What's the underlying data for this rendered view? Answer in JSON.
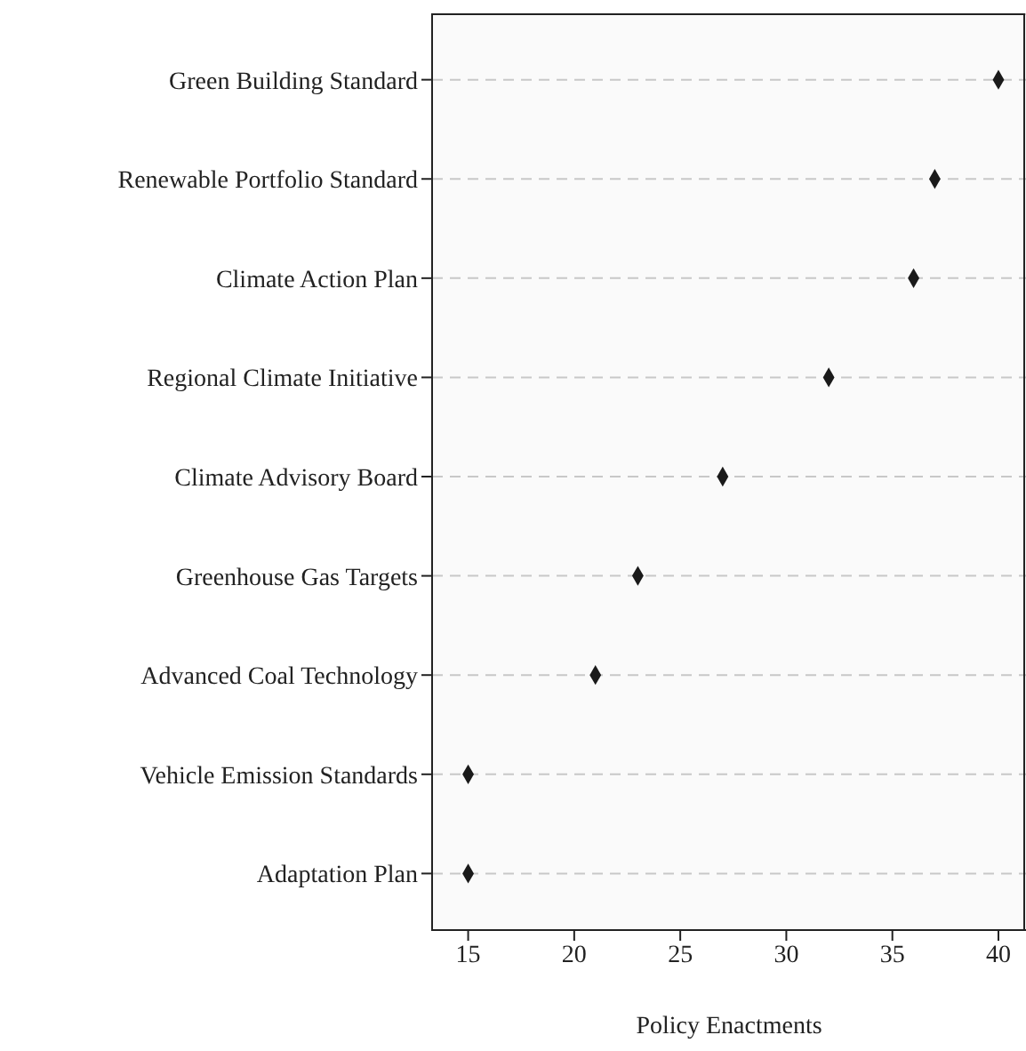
{
  "chart_data": {
    "type": "scatter",
    "orientation": "horizontal",
    "xlabel": "Policy Enactments",
    "categories": [
      "Green Building Standard",
      "Renewable Portfolio Standard",
      "Climate Action Plan",
      "Regional Climate Initiative",
      "Climate Advisory Board",
      "Greenhouse Gas Targets",
      "Advanced Coal Technology",
      "Vehicle Emission Standards",
      "Adaptation Plan"
    ],
    "values": [
      40,
      37,
      36,
      32,
      27,
      23,
      21,
      15,
      15
    ],
    "color": "#1a1a1a",
    "marker": "diamond",
    "grid": "y",
    "xlim": [
      13.3,
      41.3
    ],
    "xticks": [
      15,
      20,
      25,
      30,
      35,
      40
    ]
  }
}
